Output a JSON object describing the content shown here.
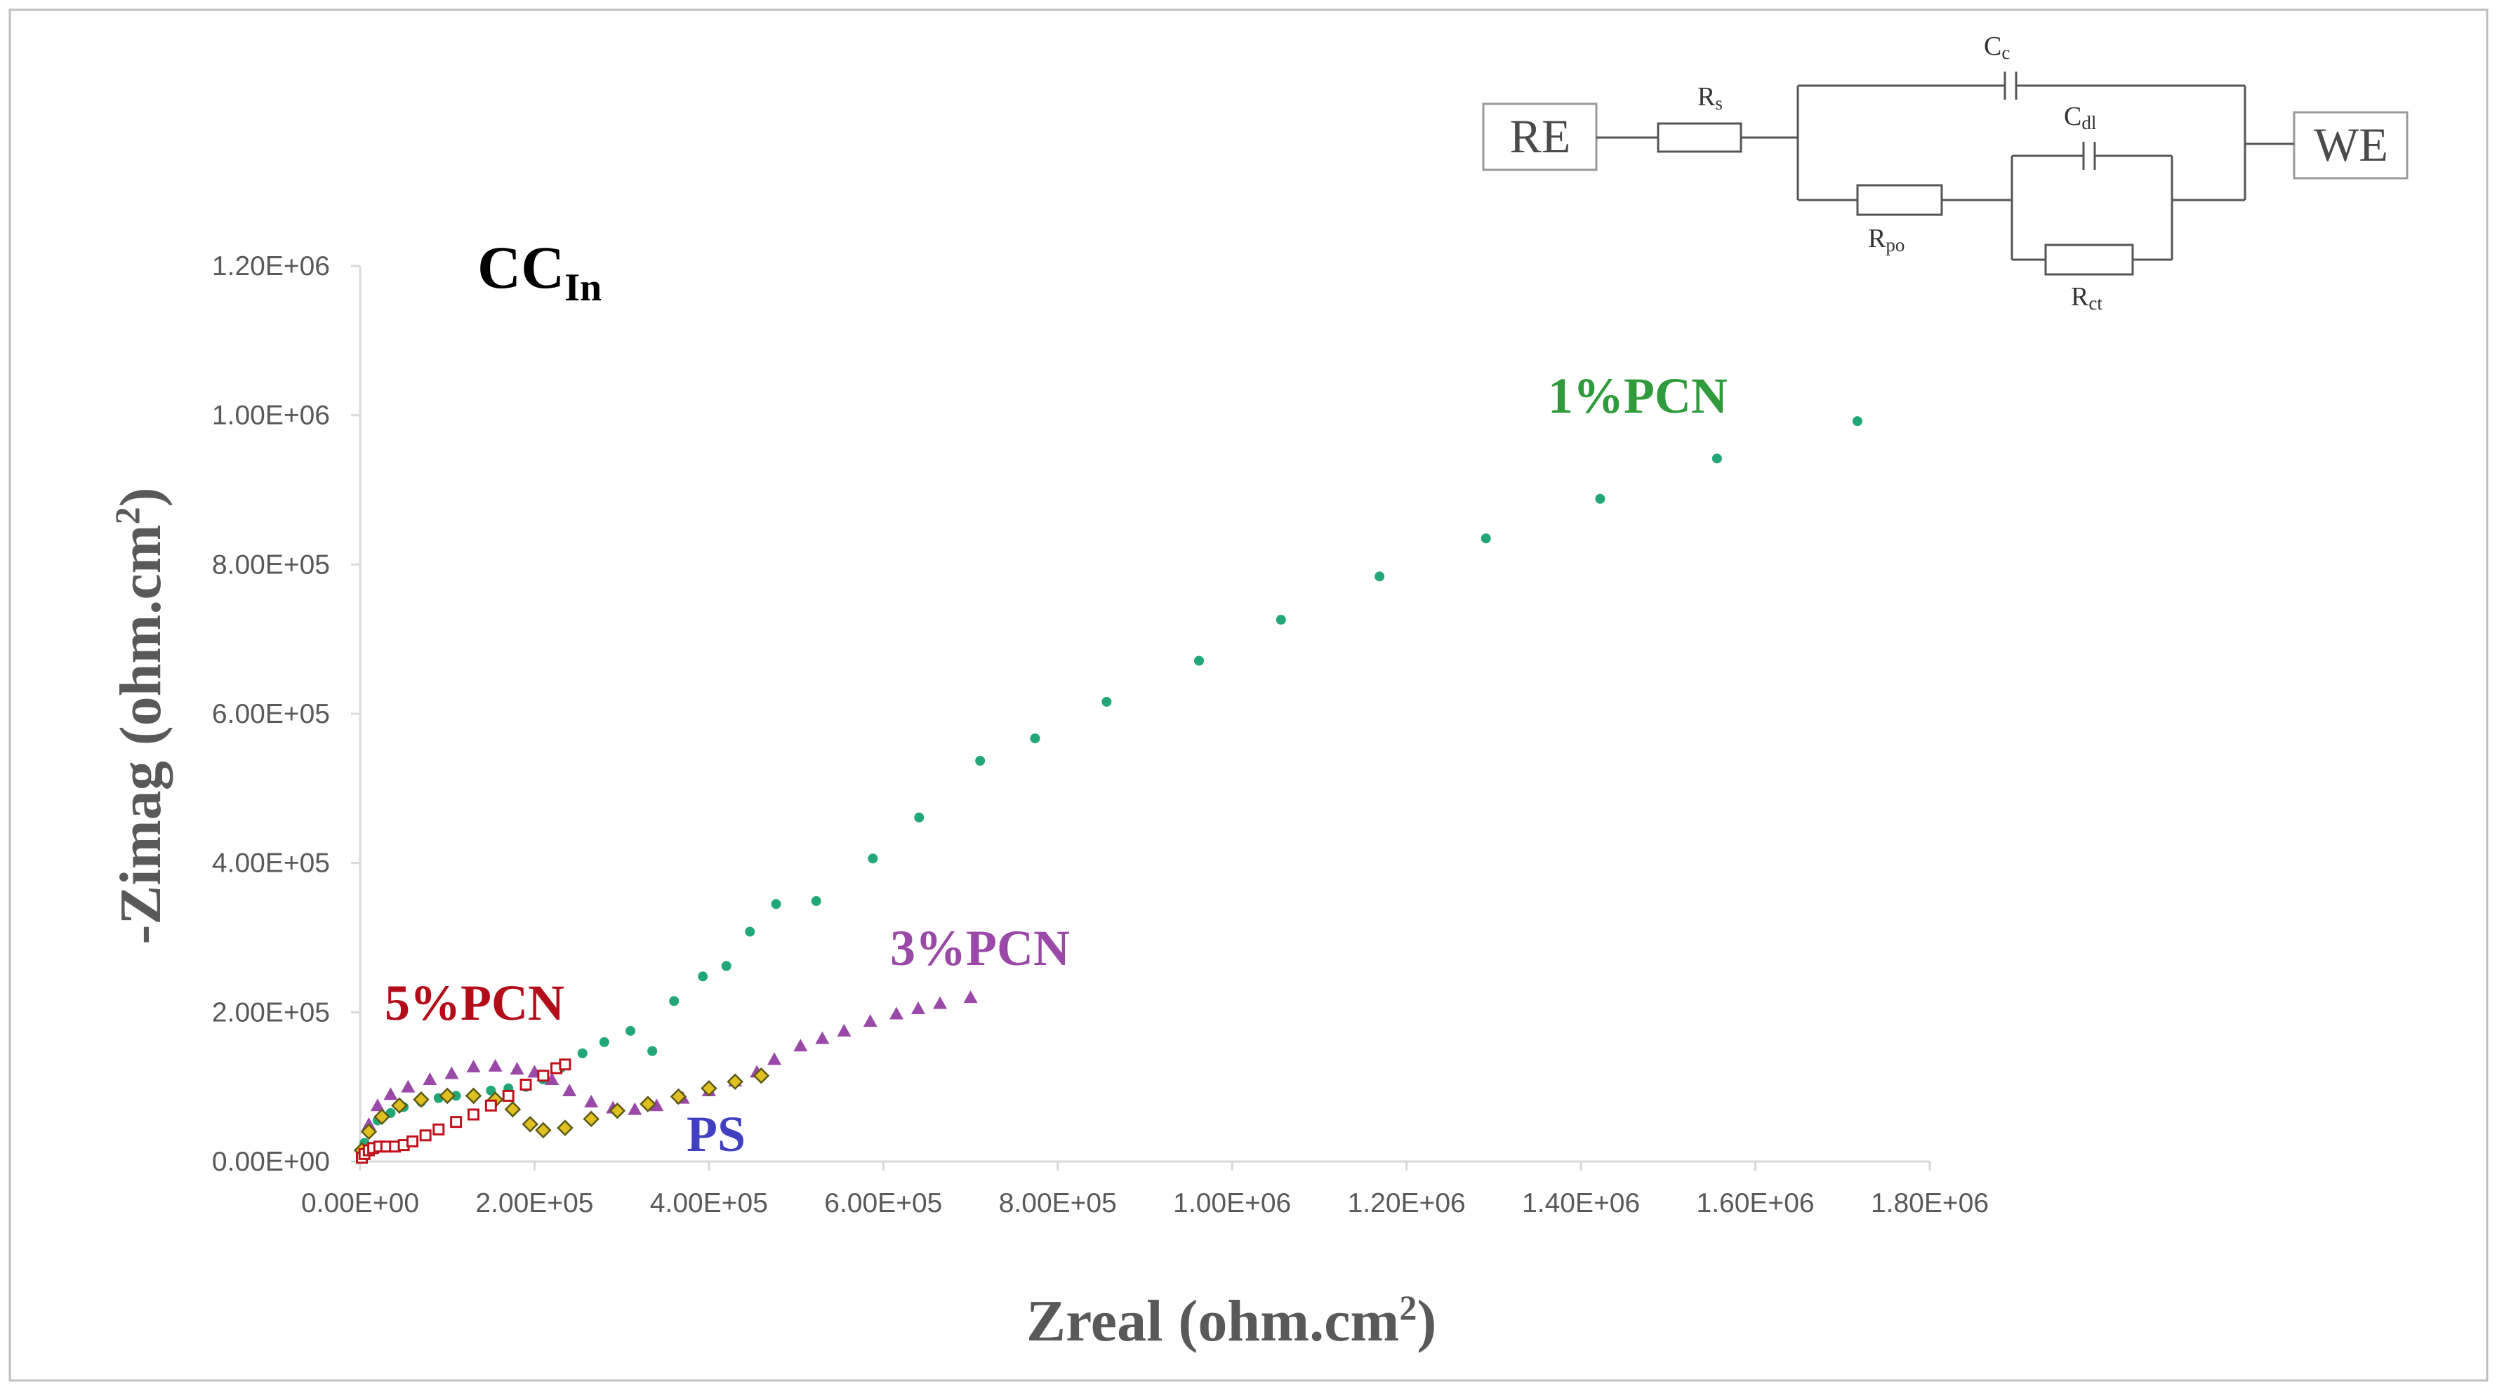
{
  "chart_data": {
    "type": "scatter",
    "title": "CC",
    "title_subscript": "In",
    "xlabel": "Zreal",
    "xlabel_unit": "(ohm.cm",
    "xlabel_sup": "2",
    "xlabel_close": ")",
    "ylabel": "-Zimag",
    "ylabel_unit": "(ohm.cm",
    "ylabel_sup": "2",
    "ylabel_close": ")",
    "xlim": [
      0,
      1800000
    ],
    "ylim": [
      0,
      1200000
    ],
    "xticks": [
      "0.00E+00",
      "2.00E+05",
      "4.00E+05",
      "6.00E+05",
      "8.00E+05",
      "1.00E+06",
      "1.20E+06",
      "1.40E+06",
      "1.60E+06",
      "1.80E+06"
    ],
    "yticks": [
      "0.00E+00",
      "2.00E+05",
      "4.00E+05",
      "6.00E+05",
      "8.00E+05",
      "1.00E+06",
      "1.20E+06"
    ],
    "series": [
      {
        "name": "1%PCN",
        "color": "#22a877",
        "label_color": "#2f9b3a",
        "marker": "dot",
        "points": [
          [
            2000,
            10000
          ],
          [
            5000,
            25000
          ],
          [
            10000,
            40000
          ],
          [
            20000,
            55000
          ],
          [
            35000,
            65000
          ],
          [
            50000,
            73000
          ],
          [
            70000,
            80000
          ],
          [
            90000,
            85000
          ],
          [
            110000,
            88000
          ],
          [
            130000,
            90000
          ],
          [
            150000,
            95000
          ],
          [
            170000,
            98000
          ],
          [
            190000,
            100000
          ],
          [
            210000,
            110000
          ],
          [
            230000,
            125000
          ],
          [
            255000,
            145000
          ],
          [
            280000,
            160000
          ],
          [
            310000,
            175000
          ],
          [
            335000,
            148000
          ],
          [
            360000,
            215000
          ],
          [
            393000,
            248000
          ],
          [
            420000,
            262000
          ],
          [
            447000,
            308000
          ],
          [
            477000,
            345000
          ],
          [
            523000,
            349000
          ],
          [
            588000,
            406000
          ],
          [
            641000,
            461000
          ],
          [
            711000,
            537000
          ],
          [
            774000,
            567000
          ],
          [
            856000,
            616000
          ],
          [
            962000,
            671000
          ],
          [
            1056000,
            726000
          ],
          [
            1169000,
            784000
          ],
          [
            1291000,
            835000
          ],
          [
            1422000,
            888000
          ],
          [
            1556000,
            942000
          ],
          [
            1717000,
            992000
          ]
        ]
      },
      {
        "name": "3%PCN",
        "color": "#9a49a8",
        "label_color": "#9a49a8",
        "marker": "triangle",
        "points": [
          [
            3000,
            15000
          ],
          [
            10000,
            50000
          ],
          [
            20000,
            75000
          ],
          [
            35000,
            90000
          ],
          [
            55000,
            100000
          ],
          [
            80000,
            110000
          ],
          [
            105000,
            118000
          ],
          [
            130000,
            127000
          ],
          [
            155000,
            128000
          ],
          [
            180000,
            124000
          ],
          [
            200000,
            120000
          ],
          [
            220000,
            110000
          ],
          [
            240000,
            95000
          ],
          [
            265000,
            80000
          ],
          [
            290000,
            72000
          ],
          [
            315000,
            70000
          ],
          [
            340000,
            75000
          ],
          [
            370000,
            85000
          ],
          [
            400000,
            95000
          ],
          [
            430000,
            108000
          ],
          [
            455000,
            120000
          ],
          [
            475000,
            137000
          ],
          [
            505000,
            155000
          ],
          [
            530000,
            165000
          ],
          [
            555000,
            175000
          ],
          [
            585000,
            188000
          ],
          [
            615000,
            198000
          ],
          [
            640000,
            205000
          ],
          [
            665000,
            212000
          ],
          [
            700000,
            220000
          ]
        ]
      },
      {
        "name": "PS",
        "color": "#5a5a14",
        "fill": "#e0c020",
        "label_color": "#4040c0",
        "marker": "diamond",
        "points": [
          [
            2000,
            15000
          ],
          [
            10000,
            40000
          ],
          [
            25000,
            60000
          ],
          [
            45000,
            75000
          ],
          [
            70000,
            83000
          ],
          [
            100000,
            88000
          ],
          [
            130000,
            88000
          ],
          [
            155000,
            83000
          ],
          [
            175000,
            70000
          ],
          [
            195000,
            50000
          ],
          [
            210000,
            42000
          ],
          [
            235000,
            45000
          ],
          [
            265000,
            57000
          ],
          [
            295000,
            68000
          ],
          [
            330000,
            77000
          ],
          [
            365000,
            87000
          ],
          [
            400000,
            98000
          ],
          [
            430000,
            107000
          ],
          [
            460000,
            115000
          ]
        ]
      },
      {
        "name": "5%PCN",
        "color": "#c0101a",
        "label_color": "#b40d1a",
        "marker": "square",
        "points": [
          [
            2000,
            5000
          ],
          [
            5000,
            10000
          ],
          [
            10000,
            15000
          ],
          [
            15000,
            18000
          ],
          [
            22000,
            20000
          ],
          [
            30000,
            20000
          ],
          [
            40000,
            20000
          ],
          [
            50000,
            22000
          ],
          [
            60000,
            27000
          ],
          [
            75000,
            35000
          ],
          [
            90000,
            43000
          ],
          [
            110000,
            53000
          ],
          [
            130000,
            63000
          ],
          [
            150000,
            75000
          ],
          [
            170000,
            88000
          ],
          [
            190000,
            103000
          ],
          [
            210000,
            115000
          ],
          [
            225000,
            125000
          ],
          [
            235000,
            130000
          ]
        ]
      }
    ]
  },
  "circuit": {
    "re_label": "RE",
    "we_label": "WE",
    "rs_main": "R",
    "rs_sub": "s",
    "cc_main": "C",
    "cc_sub": "c",
    "rpo_main": "R",
    "rpo_sub": "po",
    "cdl_main": "C",
    "cdl_sub": "dl",
    "rct_main": "R",
    "rct_sub": "ct"
  }
}
